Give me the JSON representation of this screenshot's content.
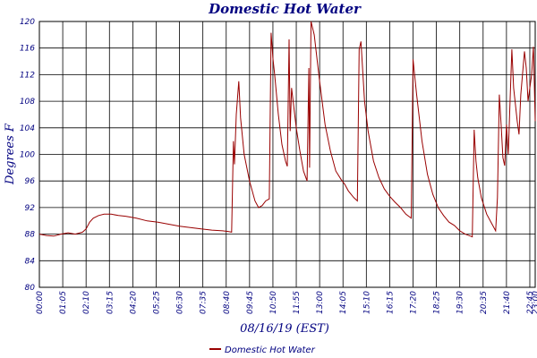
{
  "chart_data": {
    "type": "line",
    "title": "Domestic Hot Water",
    "xlabel": "08/16/19 (EST)",
    "ylabel": "Degrees F",
    "ylim": [
      80,
      120
    ],
    "yticks": [
      "80",
      "84",
      "88",
      "92",
      "96",
      "100",
      "104",
      "108",
      "112",
      "116",
      "120"
    ],
    "xticks": [
      "00:00",
      "01:05",
      "02:10",
      "03:15",
      "04:20",
      "05:25",
      "06:30",
      "07:35",
      "08:40",
      "09:45",
      "10:50",
      "11:55",
      "13:00",
      "14:05",
      "15:10",
      "16:15",
      "17:20",
      "18:25",
      "19:30",
      "20:35",
      "21:40",
      "22:45",
      "23:00"
    ],
    "grid": true,
    "legend_position": "bottom-center",
    "series": [
      {
        "name": "Domestic Hot Water",
        "color": "#990000",
        "points": [
          [
            "00:00",
            88.0
          ],
          [
            "00:20",
            87.8
          ],
          [
            "00:40",
            87.7
          ],
          [
            "01:00",
            88.0
          ],
          [
            "01:20",
            88.2
          ],
          [
            "01:40",
            88.0
          ],
          [
            "02:00",
            88.3
          ],
          [
            "02:10",
            88.8
          ],
          [
            "02:20",
            89.8
          ],
          [
            "02:30",
            90.4
          ],
          [
            "02:45",
            90.8
          ],
          [
            "03:00",
            91.0
          ],
          [
            "03:20",
            91.0
          ],
          [
            "03:40",
            90.8
          ],
          [
            "04:00",
            90.7
          ],
          [
            "04:30",
            90.4
          ],
          [
            "05:00",
            90.0
          ],
          [
            "05:30",
            89.8
          ],
          [
            "06:00",
            89.5
          ],
          [
            "06:30",
            89.2
          ],
          [
            "07:00",
            89.0
          ],
          [
            "07:30",
            88.8
          ],
          [
            "08:00",
            88.6
          ],
          [
            "08:30",
            88.5
          ],
          [
            "08:45",
            88.4
          ],
          [
            "08:55",
            88.3
          ],
          [
            "09:00",
            102.0
          ],
          [
            "09:03",
            98.5
          ],
          [
            "09:08",
            106.0
          ],
          [
            "09:15",
            111.0
          ],
          [
            "09:20",
            105.5
          ],
          [
            "09:30",
            100.0
          ],
          [
            "09:45",
            96.0
          ],
          [
            "10:00",
            93.0
          ],
          [
            "10:10",
            92.0
          ],
          [
            "10:20",
            92.3
          ],
          [
            "10:30",
            93.0
          ],
          [
            "10:40",
            93.3
          ],
          [
            "10:45",
            118.3
          ],
          [
            "10:50",
            114.5
          ],
          [
            "10:55",
            112.0
          ],
          [
            "11:05",
            106.0
          ],
          [
            "11:15",
            101.5
          ],
          [
            "11:25",
            99.0
          ],
          [
            "11:30",
            98.2
          ],
          [
            "11:35",
            117.3
          ],
          [
            "11:38",
            103.5
          ],
          [
            "11:42",
            110.0
          ],
          [
            "11:55",
            104.0
          ],
          [
            "12:05",
            100.5
          ],
          [
            "12:15",
            97.5
          ],
          [
            "12:25",
            96.0
          ],
          [
            "12:30",
            113.0
          ],
          [
            "12:32",
            98.0
          ],
          [
            "12:36",
            120.0
          ],
          [
            "12:45",
            118.0
          ],
          [
            "13:00",
            111.0
          ],
          [
            "13:15",
            104.5
          ],
          [
            "13:30",
            100.5
          ],
          [
            "13:45",
            97.5
          ],
          [
            "14:00",
            96.2
          ],
          [
            "14:10",
            95.5
          ],
          [
            "14:20",
            94.5
          ],
          [
            "14:35",
            93.5
          ],
          [
            "14:45",
            93.0
          ],
          [
            "14:50",
            115.8
          ],
          [
            "14:55",
            117.0
          ],
          [
            "15:05",
            108.0
          ],
          [
            "15:15",
            103.5
          ],
          [
            "15:30",
            99.0
          ],
          [
            "15:45",
            96.5
          ],
          [
            "16:00",
            94.8
          ],
          [
            "16:15",
            93.7
          ],
          [
            "16:30",
            92.8
          ],
          [
            "16:45",
            92.0
          ],
          [
            "17:00",
            91.0
          ],
          [
            "17:15",
            90.4
          ],
          [
            "17:20",
            114.3
          ],
          [
            "17:30",
            109.0
          ],
          [
            "17:45",
            102.0
          ],
          [
            "18:00",
            97.0
          ],
          [
            "18:15",
            94.0
          ],
          [
            "18:30",
            92.0
          ],
          [
            "18:45",
            90.8
          ],
          [
            "19:00",
            89.8
          ],
          [
            "19:15",
            89.3
          ],
          [
            "19:30",
            88.5
          ],
          [
            "19:45",
            88.0
          ],
          [
            "20:00",
            87.7
          ],
          [
            "20:05",
            87.6
          ],
          [
            "20:10",
            103.7
          ],
          [
            "20:15",
            99.0
          ],
          [
            "20:20",
            96.5
          ],
          [
            "20:30",
            93.5
          ],
          [
            "20:45",
            91.0
          ],
          [
            "21:00",
            89.5
          ],
          [
            "21:10",
            88.5
          ],
          [
            "21:15",
            93.5
          ],
          [
            "21:20",
            109.0
          ],
          [
            "21:25",
            104.5
          ],
          [
            "21:30",
            99.5
          ],
          [
            "21:35",
            98.3
          ],
          [
            "21:40",
            104.5
          ],
          [
            "21:45",
            100.0
          ],
          [
            "21:50",
            108.0
          ],
          [
            "21:55",
            115.8
          ],
          [
            "22:00",
            110.0
          ],
          [
            "22:10",
            105.0
          ],
          [
            "22:15",
            103.0
          ],
          [
            "22:20",
            109.0
          ],
          [
            "22:30",
            115.5
          ],
          [
            "22:35",
            113.0
          ],
          [
            "22:40",
            108.0
          ],
          [
            "22:50",
            112.0
          ],
          [
            "22:55",
            116.2
          ],
          [
            "23:00",
            105.0
          ]
        ]
      }
    ]
  }
}
